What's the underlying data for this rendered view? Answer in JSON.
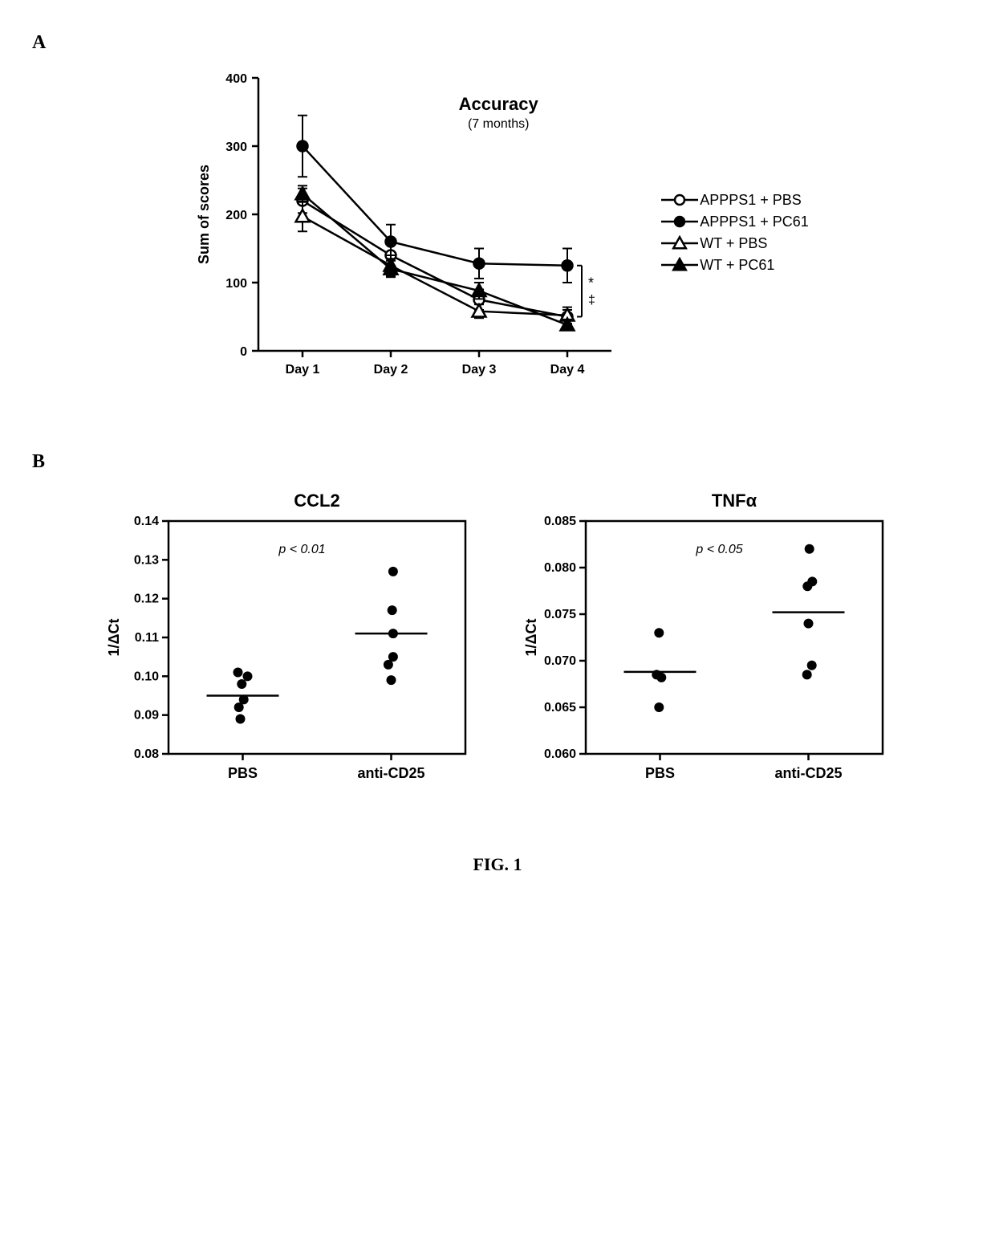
{
  "figure_label": "FIG. 1",
  "panelA": {
    "label": "A",
    "chart": {
      "type": "line",
      "title": "Accuracy",
      "subtitle": "(7 months)",
      "title_fontsize": 22,
      "subtitle_fontsize": 16,
      "ylabel": "Sum of scores",
      "ylabel_fontsize": 18,
      "ylim": [
        0,
        400
      ],
      "yticks": [
        0,
        100,
        200,
        300,
        400
      ],
      "x_categories": [
        "Day 1",
        "Day 2",
        "Day 3",
        "Day 4"
      ],
      "xtick_fontsize": 16,
      "ytick_fontsize": 16,
      "axis_color": "#000000",
      "axis_width": 2.5,
      "background_color": "#ffffff",
      "series": [
        {
          "name": "APPPS1 + PBS",
          "marker": "circle-open",
          "color": "#000000",
          "fill": "#ffffff",
          "line_width": 2.5,
          "y": [
            220,
            140,
            75,
            50
          ],
          "err": [
            18,
            18,
            15,
            10
          ]
        },
        {
          "name": "APPPS1 + PC61",
          "marker": "circle-filled",
          "color": "#000000",
          "fill": "#000000",
          "line_width": 2.5,
          "y": [
            300,
            160,
            128,
            125
          ],
          "err": [
            45,
            25,
            22,
            25
          ]
        },
        {
          "name": "WT + PBS",
          "marker": "triangle-open",
          "color": "#000000",
          "fill": "#ffffff",
          "line_width": 2.5,
          "y": [
            197,
            125,
            58,
            52
          ],
          "err": [
            22,
            15,
            10,
            12
          ]
        },
        {
          "name": "WT + PC61",
          "marker": "triangle-filled",
          "color": "#000000",
          "fill": "#000000",
          "line_width": 2.5,
          "y": [
            230,
            120,
            88,
            38
          ],
          "err": [
            12,
            12,
            12,
            8
          ]
        }
      ],
      "significance": {
        "symbols": "* ‡",
        "y_top": 125,
        "y_bot": 50
      }
    }
  },
  "panelB": {
    "label": "B",
    "charts": [
      {
        "type": "scatter",
        "title": "CCL2",
        "title_fontsize": 22,
        "ylabel": "1/ΔCt",
        "ylabel_fontsize": 18,
        "pvalue": "p < 0.01",
        "pvalue_fontsize": 16,
        "ylim": [
          0.08,
          0.14
        ],
        "yticks": [
          0.08,
          0.09,
          0.1,
          0.11,
          0.12,
          0.13,
          0.14
        ],
        "ytick_labels": [
          "0.08",
          "0.09",
          "0.10",
          "0.11",
          "0.12",
          "0.13",
          "0.14"
        ],
        "x_categories": [
          "PBS",
          "anti-CD25"
        ],
        "xtick_fontsize": 18,
        "ytick_fontsize": 16,
        "marker_color": "#000000",
        "marker_size": 6,
        "axis_color": "#000000",
        "axis_width": 2.5,
        "groups": [
          {
            "name": "PBS",
            "points": [
              0.101,
              0.098,
              0.1,
              0.092,
              0.094,
              0.089
            ],
            "jitter": [
              -0.1,
              -0.02,
              0.1,
              -0.08,
              0.02,
              -0.05
            ],
            "mean": 0.095
          },
          {
            "name": "anti-CD25",
            "points": [
              0.127,
              0.117,
              0.111,
              0.105,
              0.103,
              0.099
            ],
            "jitter": [
              0.04,
              0.02,
              0.04,
              0.04,
              -0.06,
              0.0
            ],
            "mean": 0.111
          }
        ]
      },
      {
        "type": "scatter",
        "title": "TNFα",
        "title_fontsize": 22,
        "ylabel": "1/ΔCt",
        "ylabel_fontsize": 18,
        "pvalue": "p < 0.05",
        "pvalue_fontsize": 16,
        "ylim": [
          0.06,
          0.085
        ],
        "yticks": [
          0.06,
          0.065,
          0.07,
          0.075,
          0.08,
          0.085
        ],
        "ytick_labels": [
          "0.060",
          "0.065",
          "0.070",
          "0.075",
          "0.080",
          "0.085"
        ],
        "x_categories": [
          "PBS",
          "anti-CD25"
        ],
        "xtick_fontsize": 18,
        "ytick_fontsize": 16,
        "marker_color": "#000000",
        "marker_size": 6,
        "axis_color": "#000000",
        "axis_width": 2.5,
        "groups": [
          {
            "name": "PBS",
            "points": [
              0.073,
              0.0685,
              0.0682,
              0.065
            ],
            "jitter": [
              -0.02,
              -0.07,
              0.03,
              -0.02
            ],
            "mean": 0.0688
          },
          {
            "name": "anti-CD25",
            "points": [
              0.082,
              0.0785,
              0.078,
              0.074,
              0.0695,
              0.0685
            ],
            "jitter": [
              0.02,
              0.08,
              -0.02,
              0.0,
              0.07,
              -0.03
            ],
            "mean": 0.0752
          }
        ]
      }
    ]
  }
}
